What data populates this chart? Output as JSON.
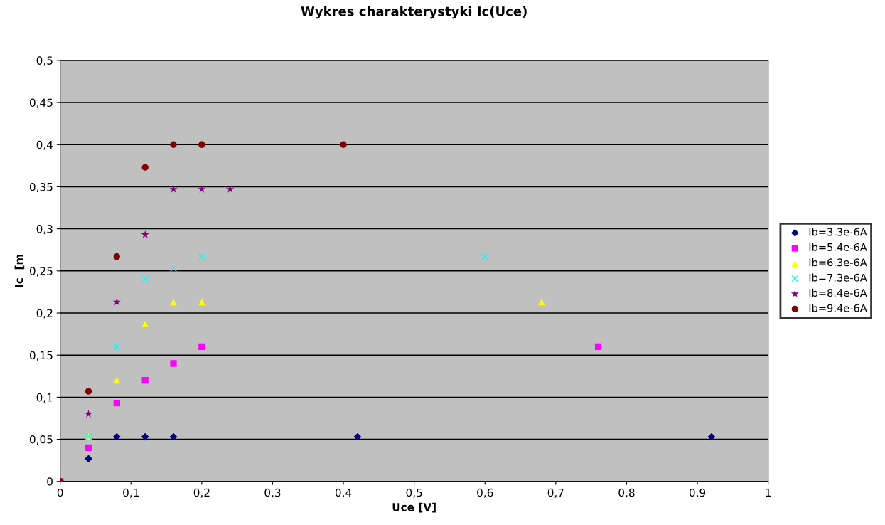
{
  "chart_data": {
    "type": "scatter",
    "title": "Wykres charakterystyki Ic(Uce)",
    "xlabel": "Uce [V]",
    "ylabel": "Ic  [m",
    "xlim": [
      0,
      1
    ],
    "ylim": [
      0,
      0.5
    ],
    "xticks": [
      0,
      {
        "value": 0.1,
        "label": "0,1"
      },
      {
        "value": 0.2,
        "label": "0,2"
      },
      {
        "value": 0.3,
        "label": "0,3"
      },
      {
        "value": 0.4,
        "label": "0,4"
      },
      {
        "value": 0.5,
        "label": "0,5"
      },
      {
        "value": 0.6,
        "label": "0,6"
      },
      {
        "value": 0.7,
        "label": "0,7"
      },
      {
        "value": 0.8,
        "label": "0,8"
      },
      {
        "value": 0.9,
        "label": "0,9"
      },
      1
    ],
    "yticks": [
      0,
      {
        "value": 0.05,
        "label": "0,05"
      },
      {
        "value": 0.1,
        "label": "0,1"
      },
      {
        "value": 0.15,
        "label": "0,15"
      },
      {
        "value": 0.2,
        "label": "0,2"
      },
      {
        "value": 0.25,
        "label": "0,25"
      },
      {
        "value": 0.3,
        "label": "0,3"
      },
      {
        "value": 0.35,
        "label": "0,35"
      },
      {
        "value": 0.4,
        "label": "0,4"
      },
      {
        "value": 0.45,
        "label": "0,45"
      },
      {
        "value": 0.5,
        "label": "0,5"
      }
    ],
    "grid": "y",
    "legend": "right",
    "series": [
      {
        "name": "Ib=3.3e-6A",
        "color": "#000080",
        "marker": "diamond",
        "x": [
          0,
          0.04,
          0.08,
          0.12,
          0.16,
          0.42,
          0.92
        ],
        "values": [
          0,
          0.027,
          0.053,
          0.053,
          0.053,
          0.053,
          0.053
        ]
      },
      {
        "name": "Ib=5.4e-6A",
        "color": "#ff00ff",
        "marker": "square",
        "x": [
          0,
          0.04,
          0.08,
          0.12,
          0.16,
          0.2,
          0.76
        ],
        "values": [
          0,
          0.04,
          0.093,
          0.12,
          0.14,
          0.16,
          0.16
        ]
      },
      {
        "name": "Ib=6.3e-6A",
        "color": "#ffff00",
        "marker": "triangle",
        "x": [
          0,
          0.04,
          0.08,
          0.12,
          0.16,
          0.2,
          0.68
        ],
        "values": [
          0,
          0.053,
          0.12,
          0.187,
          0.213,
          0.213,
          0.213
        ]
      },
      {
        "name": "Ib=7.3e-6A",
        "color": "#00ffff",
        "marker": "cross",
        "x": [
          0,
          0.04,
          0.08,
          0.12,
          0.16,
          0.2,
          0.6
        ],
        "values": [
          0,
          0.053,
          0.16,
          0.24,
          0.253,
          0.267,
          0.267
        ]
      },
      {
        "name": "Ib=8.4e-6A",
        "color": "#800080",
        "marker": "star",
        "x": [
          0,
          0.04,
          0.08,
          0.12,
          0.16,
          0.2,
          0.24
        ],
        "values": [
          0,
          0.08,
          0.213,
          0.293,
          0.347,
          0.347,
          0.347
        ]
      },
      {
        "name": "Ib=9.4e-6A",
        "color": "#800000",
        "marker": "circle",
        "x": [
          0,
          0.04,
          0.08,
          0.12,
          0.16,
          0.2,
          0.4
        ],
        "values": [
          0,
          0.107,
          0.267,
          0.373,
          0.4,
          0.4,
          0.4
        ]
      }
    ]
  }
}
